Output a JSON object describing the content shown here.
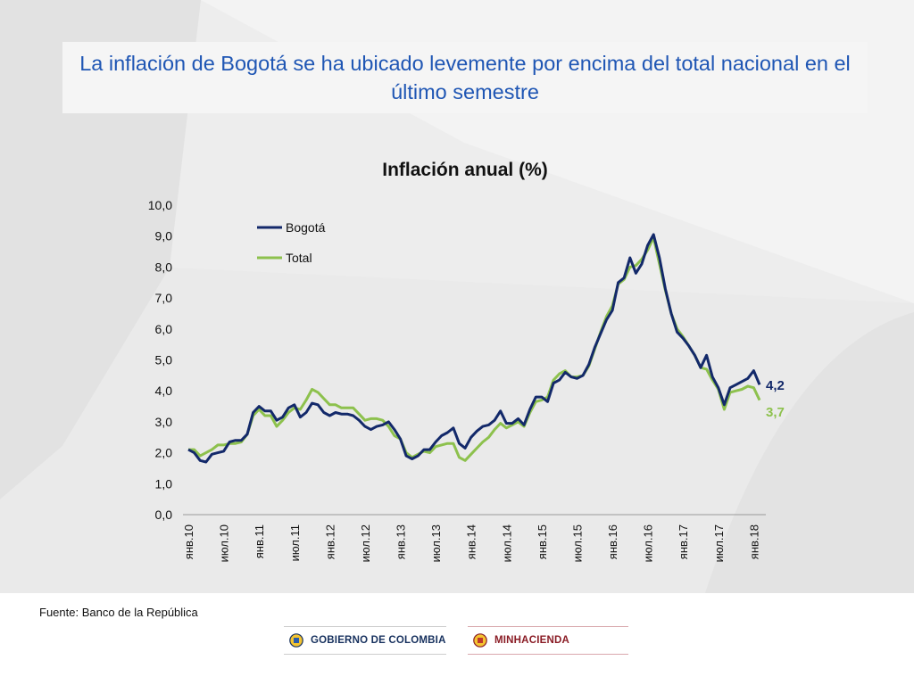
{
  "slide": {
    "title": "La inflación de Bogotá se ha ubicado levemente por encima del total nacional en el último semestre",
    "source": "Fuente: Banco de la República",
    "logos": {
      "gobierno": "GOBIERNO DE COLOMBIA",
      "minhacienda": "MINHACIENDA"
    }
  },
  "colors": {
    "bogota": "#13296a",
    "total": "#8dc14d",
    "title": "#1f56b4"
  },
  "chart_data": {
    "type": "line",
    "title": "Inflación anual (%)",
    "ylim": [
      0,
      10
    ],
    "y_ticks": [
      "0,0",
      "1,0",
      "2,0",
      "3,0",
      "4,0",
      "5,0",
      "6,0",
      "7,0",
      "8,0",
      "9,0",
      "10,0"
    ],
    "x_tick_labels": [
      "янв.10",
      "июл.10",
      "янв.11",
      "июл.11",
      "янв.12",
      "июл.12",
      "янв.13",
      "июл.13",
      "янв.14",
      "июл.14",
      "янв.15",
      "июл.15",
      "янв.16",
      "июл.16",
      "янв.17",
      "июл.17",
      "янв.18"
    ],
    "legend": "top-left",
    "grid": false,
    "series": [
      {
        "name": "Bogotá",
        "end_label": "4,2",
        "values": [
          2.1,
          2.0,
          1.75,
          1.7,
          1.95,
          2.0,
          2.05,
          2.35,
          2.4,
          2.4,
          2.6,
          3.3,
          3.5,
          3.35,
          3.35,
          3.05,
          3.15,
          3.45,
          3.55,
          3.15,
          3.3,
          3.6,
          3.55,
          3.3,
          3.2,
          3.3,
          3.25,
          3.25,
          3.2,
          3.05,
          2.85,
          2.75,
          2.85,
          2.9,
          3.0,
          2.75,
          2.45,
          1.9,
          1.8,
          1.9,
          2.1,
          2.1,
          2.35,
          2.55,
          2.65,
          2.8,
          2.3,
          2.15,
          2.5,
          2.7,
          2.85,
          2.9,
          3.05,
          3.35,
          2.95,
          2.95,
          3.1,
          2.9,
          3.4,
          3.8,
          3.8,
          3.65,
          4.25,
          4.35,
          4.6,
          4.45,
          4.4,
          4.5,
          4.85,
          5.4,
          5.85,
          6.3,
          6.6,
          7.5,
          7.65,
          8.3,
          7.8,
          8.1,
          8.7,
          9.05,
          8.3,
          7.3,
          6.5,
          5.9,
          5.7,
          5.45,
          5.15,
          4.75,
          5.15,
          4.45,
          4.1,
          3.55,
          4.1,
          4.2,
          4.3,
          4.4,
          4.65,
          4.2
        ]
      },
      {
        "name": "Total",
        "end_label": "3,7",
        "values": [
          2.1,
          2.1,
          1.9,
          2.0,
          2.1,
          2.25,
          2.25,
          2.3,
          2.3,
          2.35,
          2.6,
          3.2,
          3.4,
          3.2,
          3.2,
          2.85,
          3.05,
          3.3,
          3.45,
          3.4,
          3.7,
          4.05,
          3.95,
          3.75,
          3.55,
          3.55,
          3.45,
          3.45,
          3.45,
          3.25,
          3.05,
          3.1,
          3.1,
          3.05,
          2.85,
          2.55,
          2.45,
          2.0,
          1.85,
          1.95,
          2.05,
          2.0,
          2.2,
          2.25,
          2.3,
          2.3,
          1.85,
          1.75,
          1.95,
          2.15,
          2.35,
          2.5,
          2.75,
          2.95,
          2.8,
          2.9,
          3.0,
          2.85,
          3.3,
          3.65,
          3.7,
          3.8,
          4.35,
          4.55,
          4.65,
          4.45,
          4.45,
          4.5,
          4.8,
          5.35,
          5.9,
          6.4,
          6.75,
          7.45,
          7.6,
          8.0,
          8.05,
          8.25,
          8.55,
          8.95,
          8.1,
          7.25,
          6.5,
          6.0,
          5.75,
          5.45,
          5.15,
          4.75,
          4.7,
          4.35,
          4.05,
          3.4,
          3.95,
          4.0,
          4.05,
          4.15,
          4.1,
          3.7
        ]
      }
    ]
  }
}
